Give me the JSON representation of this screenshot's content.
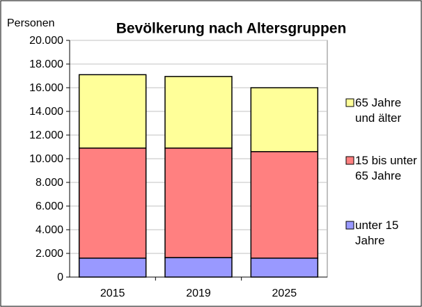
{
  "chart_data": {
    "type": "stacked_bar",
    "title": "Bevölkerung nach Altersgruppen",
    "y_label": "Personen",
    "categories": [
      "2015",
      "2019",
      "2025"
    ],
    "series": [
      {
        "name": "unter 15 Jahre",
        "color": "#9999ff",
        "values": [
          1600,
          1650,
          1600
        ]
      },
      {
        "name": "15 bis unter 65 Jahre",
        "color": "#ff8080",
        "values": [
          9300,
          9250,
          9000
        ]
      },
      {
        "name": "65 Jahre und älter",
        "color": "#ffff99",
        "values": [
          6200,
          6050,
          5400
        ]
      }
    ],
    "ylim": [
      0,
      20000
    ],
    "yticks": [
      0,
      {
        "value": 2000,
        "label": "2.000"
      },
      {
        "value": 4000,
        "label": "4.000"
      },
      {
        "value": 6000,
        "label": "6.000"
      },
      {
        "value": 8000,
        "label": "8.000"
      },
      {
        "value": 10000,
        "label": "10.000"
      },
      {
        "value": 12000,
        "label": "12.000"
      },
      {
        "value": 14000,
        "label": "14.000"
      },
      {
        "value": 16000,
        "label": "16.000"
      },
      {
        "value": 18000,
        "label": "18.000"
      },
      {
        "value": 20000,
        "label": "20.000"
      }
    ],
    "grid": true
  }
}
